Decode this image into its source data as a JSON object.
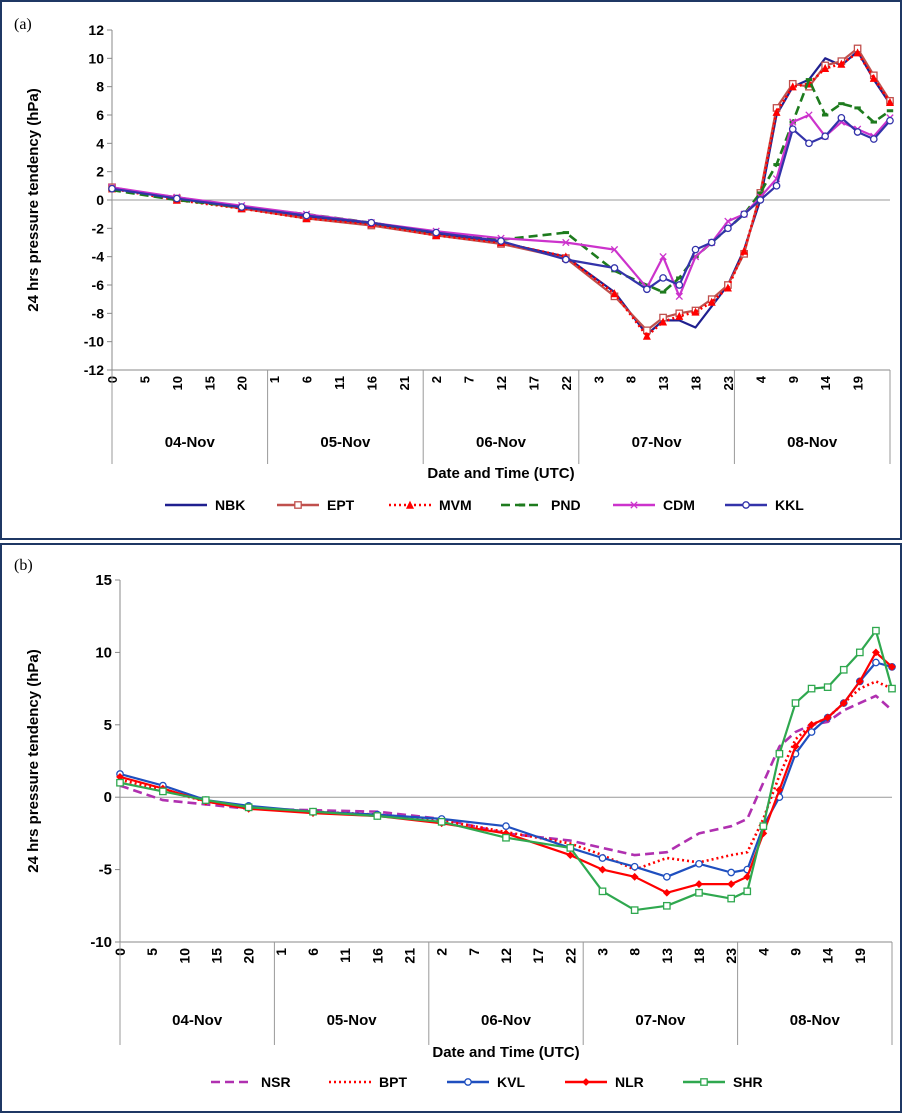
{
  "chart_data": [
    {
      "panel_label": "(a)",
      "type": "line",
      "ylabel": "24 hrs pressure tendency (hPa)",
      "xlabel": "Date and Time (UTC)",
      "ylim": [
        -12,
        12
      ],
      "yticks": [
        -12,
        -10,
        -8,
        -6,
        -4,
        -2,
        0,
        2,
        4,
        6,
        8,
        10,
        12
      ],
      "dates": [
        "04-Nov",
        "05-Nov",
        "06-Nov",
        "07-Nov",
        "08-Nov"
      ],
      "hour_tick_labels": [
        "0",
        "5",
        "10",
        "15",
        "20",
        "1",
        "6",
        "11",
        "16",
        "21",
        "2",
        "7",
        "12",
        "17",
        "22",
        "3",
        "8",
        "13",
        "18",
        "23",
        "4",
        "9",
        "14",
        "19"
      ],
      "legend_position": "bottom",
      "grid": false,
      "series": [
        {
          "name": "NBK",
          "color": "#1f1f8f",
          "marker": "none",
          "dash": "solid",
          "x": [
            0,
            12,
            24,
            36,
            48,
            60,
            72,
            84,
            93,
            99,
            102,
            105,
            108,
            111,
            114,
            117,
            120,
            123,
            126,
            129,
            132,
            135,
            138,
            141,
            144
          ],
          "y": [
            0.8,
            0.2,
            -0.5,
            -1.2,
            -1.7,
            -2.4,
            -3.0,
            -4.0,
            -6.5,
            -9.5,
            -8.5,
            -8.5,
            -9.0,
            -7.5,
            -6.0,
            -3.5,
            0.0,
            6.0,
            8.0,
            8.5,
            10.0,
            9.5,
            10.5,
            8.5,
            6.8
          ]
        },
        {
          "name": "EPT",
          "color": "#c0504d",
          "marker": "square",
          "dash": "solid",
          "x": [
            0,
            12,
            24,
            36,
            48,
            60,
            72,
            84,
            93,
            99,
            102,
            105,
            108,
            111,
            114,
            117,
            120,
            123,
            126,
            129,
            132,
            135,
            138,
            141,
            144
          ],
          "y": [
            0.9,
            0.1,
            -0.6,
            -1.3,
            -1.8,
            -2.5,
            -3.1,
            -4.1,
            -6.8,
            -9.2,
            -8.3,
            -8.0,
            -7.8,
            -7.0,
            -6.0,
            -3.8,
            0.5,
            6.5,
            8.2,
            8.0,
            9.5,
            9.8,
            10.7,
            8.8,
            7.0
          ]
        },
        {
          "name": "MVM",
          "color": "#ff0000",
          "marker": "triangle",
          "dash": "dotted",
          "x": [
            0,
            12,
            24,
            36,
            48,
            60,
            72,
            84,
            93,
            99,
            102,
            105,
            108,
            111,
            114,
            117,
            120,
            123,
            126,
            129,
            132,
            135,
            138,
            141,
            144
          ],
          "y": [
            0.8,
            0.0,
            -0.6,
            -1.3,
            -1.7,
            -2.5,
            -3.0,
            -4.0,
            -6.6,
            -9.6,
            -8.6,
            -8.2,
            -7.9,
            -7.2,
            -6.2,
            -3.6,
            0.3,
            6.2,
            8.0,
            8.2,
            9.3,
            9.6,
            10.4,
            8.6,
            6.9
          ]
        },
        {
          "name": "PND",
          "color": "#1e7b1e",
          "marker": "dash",
          "dash": "dashed",
          "x": [
            0,
            12,
            24,
            36,
            48,
            60,
            72,
            84,
            93,
            99,
            102,
            105,
            108,
            111,
            114,
            117,
            120,
            123,
            126,
            129,
            132,
            135,
            138,
            141,
            144
          ],
          "y": [
            0.7,
            0.0,
            -0.5,
            -1.0,
            -1.6,
            -2.3,
            -2.8,
            -2.3,
            -5.0,
            -6.0,
            -6.5,
            -5.5,
            -4.0,
            -3.0,
            -2.0,
            -1.0,
            0.5,
            2.5,
            5.5,
            8.5,
            6.0,
            6.8,
            6.5,
            5.5,
            6.3
          ]
        },
        {
          "name": "CDM",
          "color": "#cc33cc",
          "marker": "x",
          "dash": "solid",
          "x": [
            0,
            12,
            24,
            36,
            48,
            60,
            72,
            84,
            93,
            99,
            102,
            105,
            108,
            111,
            114,
            117,
            120,
            123,
            126,
            129,
            132,
            135,
            138,
            141,
            144
          ],
          "y": [
            0.9,
            0.2,
            -0.4,
            -1.0,
            -1.6,
            -2.2,
            -2.7,
            -3.0,
            -3.5,
            -6.2,
            -4.0,
            -6.8,
            -4.0,
            -3.0,
            -1.5,
            -1.0,
            0.2,
            1.5,
            5.5,
            6.0,
            4.5,
            5.5,
            5.0,
            4.5,
            5.8
          ]
        },
        {
          "name": "KKL",
          "color": "#3333aa",
          "marker": "circle",
          "dash": "solid",
          "x": [
            0,
            12,
            24,
            36,
            48,
            60,
            72,
            84,
            93,
            99,
            102,
            105,
            108,
            111,
            114,
            117,
            120,
            123,
            126,
            129,
            132,
            135,
            138,
            141,
            144
          ],
          "y": [
            0.8,
            0.1,
            -0.5,
            -1.1,
            -1.6,
            -2.3,
            -2.9,
            -4.2,
            -4.8,
            -6.3,
            -5.5,
            -6.0,
            -3.5,
            -3.0,
            -2.0,
            -1.0,
            0.0,
            1.0,
            5.0,
            4.0,
            4.5,
            5.8,
            4.8,
            4.3,
            5.6
          ]
        }
      ]
    },
    {
      "panel_label": "(b)",
      "type": "line",
      "ylabel": "24 hrs pressure tendency (hPa)",
      "xlabel": "Date and Time (UTC)",
      "ylim": [
        -10,
        15
      ],
      "yticks": [
        -10,
        -5,
        0,
        5,
        10,
        15
      ],
      "dates": [
        "04-Nov",
        "05-Nov",
        "06-Nov",
        "07-Nov",
        "08-Nov"
      ],
      "hour_tick_labels": [
        "0",
        "5",
        "10",
        "15",
        "20",
        "1",
        "6",
        "11",
        "16",
        "21",
        "2",
        "7",
        "12",
        "17",
        "22",
        "3",
        "8",
        "13",
        "18",
        "23",
        "4",
        "9",
        "14",
        "19"
      ],
      "legend_position": "bottom",
      "grid": false,
      "series": [
        {
          "name": "NSR",
          "color": "#b030b0",
          "marker": "none",
          "dash": "dashed",
          "x": [
            0,
            8,
            16,
            24,
            36,
            48,
            60,
            72,
            84,
            90,
            96,
            102,
            108,
            114,
            117,
            120,
            123,
            126,
            129,
            132,
            135,
            138,
            141,
            144
          ],
          "y": [
            0.8,
            -0.2,
            -0.5,
            -0.8,
            -0.9,
            -1.0,
            -1.5,
            -2.5,
            -3.0,
            -3.5,
            -4.0,
            -3.8,
            -2.5,
            -2.0,
            -1.5,
            1.0,
            3.5,
            4.5,
            5.0,
            5.2,
            6.0,
            6.5,
            7.0,
            6.0
          ]
        },
        {
          "name": "BPT",
          "color": "#ff0000",
          "marker": "none",
          "dash": "dotted",
          "x": [
            0,
            8,
            16,
            24,
            36,
            48,
            60,
            72,
            84,
            90,
            96,
            102,
            108,
            114,
            117,
            120,
            123,
            126,
            129,
            132,
            135,
            138,
            141,
            144
          ],
          "y": [
            1.2,
            0.5,
            -0.3,
            -0.7,
            -1.0,
            -1.2,
            -1.6,
            -2.4,
            -3.2,
            -4.0,
            -5.0,
            -4.2,
            -4.5,
            -4.0,
            -3.8,
            -1.5,
            1.5,
            4.0,
            5.0,
            5.5,
            6.5,
            7.5,
            8.0,
            7.5
          ]
        },
        {
          "name": "KVL",
          "color": "#1f4fbf",
          "marker": "circle",
          "dash": "solid",
          "x": [
            0,
            8,
            16,
            24,
            36,
            48,
            60,
            72,
            84,
            90,
            96,
            102,
            108,
            114,
            117,
            120,
            123,
            126,
            129,
            132,
            135,
            138,
            141,
            144
          ],
          "y": [
            1.6,
            0.8,
            -0.2,
            -0.6,
            -1.0,
            -1.2,
            -1.5,
            -2.0,
            -3.5,
            -4.2,
            -4.8,
            -5.5,
            -4.6,
            -5.2,
            -5.0,
            -2.0,
            0.0,
            3.0,
            4.5,
            5.5,
            6.5,
            8.0,
            9.3,
            9.0
          ]
        },
        {
          "name": "NLR",
          "color": "#ff0000",
          "marker": "diamond",
          "dash": "solid",
          "x": [
            0,
            8,
            16,
            24,
            36,
            48,
            60,
            72,
            84,
            90,
            96,
            102,
            108,
            114,
            117,
            120,
            123,
            126,
            129,
            132,
            135,
            138,
            141,
            144
          ],
          "y": [
            1.4,
            0.6,
            -0.3,
            -0.8,
            -1.1,
            -1.3,
            -1.8,
            -2.5,
            -4.0,
            -5.0,
            -5.5,
            -6.6,
            -6.0,
            -6.0,
            -5.5,
            -2.5,
            0.5,
            3.5,
            5.0,
            5.5,
            6.5,
            8.0,
            10.0,
            9.0
          ]
        },
        {
          "name": "SHR",
          "color": "#2fa84f",
          "marker": "square",
          "dash": "solid",
          "x": [
            0,
            8,
            16,
            24,
            36,
            48,
            60,
            72,
            84,
            90,
            96,
            102,
            108,
            114,
            117,
            120,
            123,
            126,
            129,
            132,
            135,
            138,
            141,
            144
          ],
          "y": [
            1.0,
            0.4,
            -0.2,
            -0.7,
            -1.0,
            -1.3,
            -1.7,
            -2.8,
            -3.5,
            -6.5,
            -7.8,
            -7.5,
            -6.6,
            -7.0,
            -6.5,
            -2.0,
            3.0,
            6.5,
            7.5,
            7.6,
            8.8,
            10.0,
            11.5,
            7.5
          ]
        }
      ]
    }
  ]
}
